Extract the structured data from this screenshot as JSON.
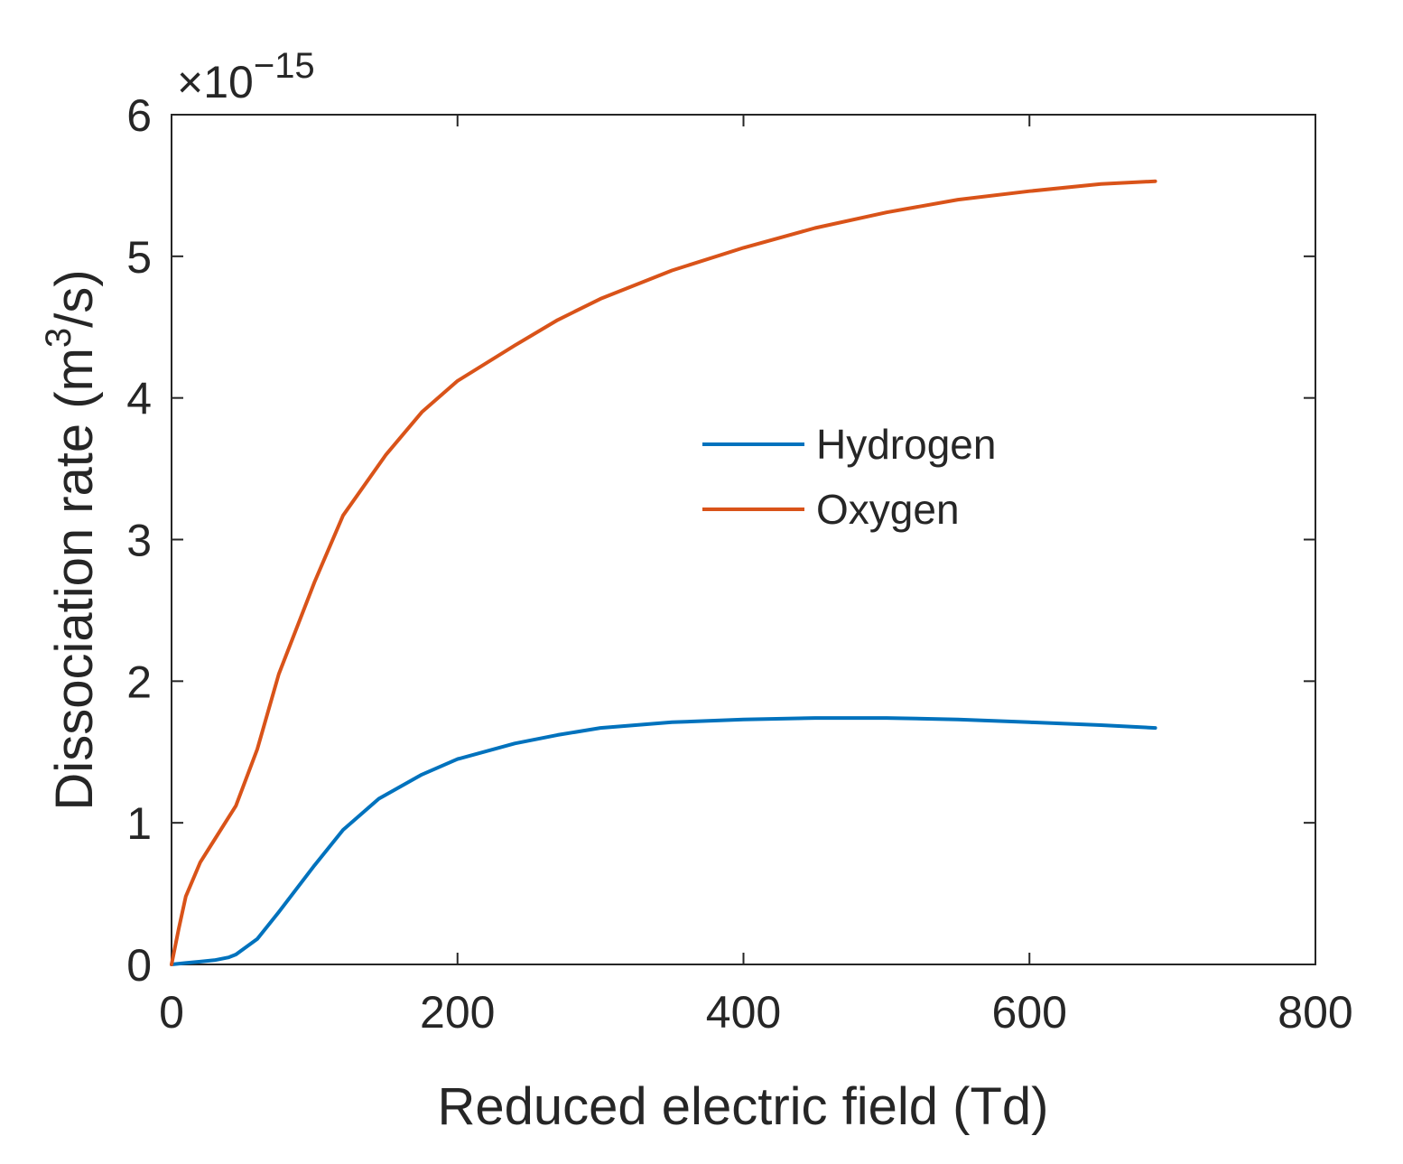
{
  "chart_data": {
    "type": "line",
    "title": "",
    "xlabel": "Reduced electric field (Td)",
    "ylabel_main": "Dissociation rate (m",
    "ylabel_sup": "3",
    "ylabel_end": "/s)",
    "y_exponent_prefix": "×10",
    "y_exponent_power": "−15",
    "xlim": [
      0,
      800
    ],
    "ylim": [
      0,
      6
    ],
    "xticks": [
      0,
      200,
      400,
      600,
      800
    ],
    "xtick_labels": [
      "0",
      "200",
      "400",
      "600",
      "800"
    ],
    "yticks": [
      0,
      1,
      2,
      3,
      4,
      5,
      6
    ],
    "ytick_labels": [
      "0",
      "1",
      "2",
      "3",
      "4",
      "5",
      "6"
    ],
    "grid": false,
    "legend_position": "center",
    "series": [
      {
        "name": "Hydrogen",
        "color": "#0072BD",
        "x": [
          0,
          10,
          20,
          30,
          40,
          45,
          60,
          75,
          100,
          120,
          145,
          175,
          200,
          240,
          270,
          300,
          350,
          400,
          450,
          500,
          550,
          600,
          650,
          688
        ],
        "y": [
          0,
          0.01,
          0.02,
          0.03,
          0.05,
          0.07,
          0.18,
          0.37,
          0.7,
          0.95,
          1.17,
          1.34,
          1.45,
          1.56,
          1.62,
          1.67,
          1.71,
          1.73,
          1.74,
          1.74,
          1.73,
          1.71,
          1.69,
          1.67
        ]
      },
      {
        "name": "Oxygen",
        "color": "#D95319",
        "x": [
          0,
          5,
          10,
          20,
          30,
          45,
          60,
          75,
          100,
          120,
          150,
          175,
          200,
          240,
          270,
          300,
          350,
          400,
          450,
          500,
          550,
          600,
          650,
          688
        ],
        "y": [
          0,
          0.25,
          0.48,
          0.72,
          0.88,
          1.12,
          1.52,
          2.05,
          2.7,
          3.17,
          3.6,
          3.9,
          4.12,
          4.37,
          4.55,
          4.7,
          4.9,
          5.06,
          5.2,
          5.31,
          5.4,
          5.46,
          5.51,
          5.53
        ]
      }
    ]
  }
}
